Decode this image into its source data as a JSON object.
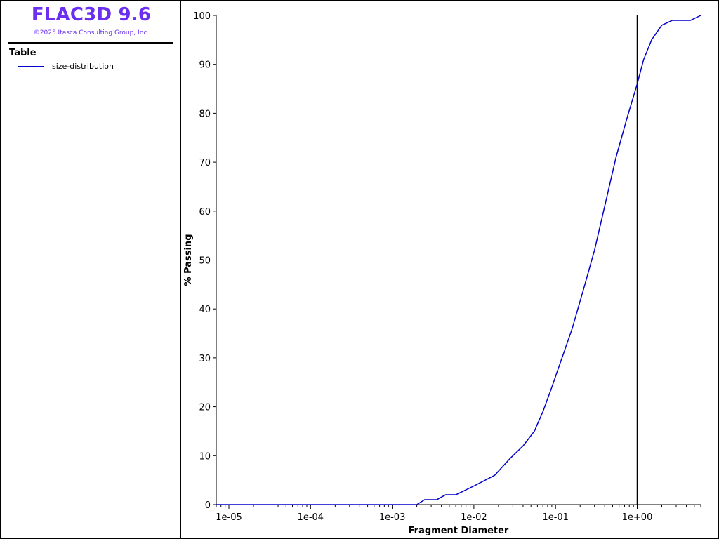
{
  "app": {
    "title": "FLAC3D 9.6",
    "copyright": "©2025 Itasca Consulting Group, Inc.",
    "brand_color": "#6a2ff0"
  },
  "legend": {
    "heading": "Table",
    "entries": [
      {
        "label": "size-distribution",
        "color": "#0000c8"
      }
    ]
  },
  "chart_data": {
    "type": "line",
    "xscale": "log",
    "xlim": [
      7e-06,
      6
    ],
    "ylim": [
      0,
      100
    ],
    "xlabel": "Fragment Diameter",
    "ylabel": "% Passing",
    "x_ticks": [
      {
        "value": 1e-05,
        "label": "1e-05"
      },
      {
        "value": 0.0001,
        "label": "1e-04"
      },
      {
        "value": 0.001,
        "label": "1e-03"
      },
      {
        "value": 0.01,
        "label": "1e-02"
      },
      {
        "value": 0.1,
        "label": "1e-01"
      },
      {
        "value": 1,
        "label": "1e+00"
      }
    ],
    "y_ticks": [
      0,
      10,
      20,
      30,
      40,
      50,
      60,
      70,
      80,
      90,
      100
    ],
    "grid": false,
    "vertical_marker": 1,
    "series": [
      {
        "name": "size-distribution",
        "color": "#0000c8",
        "x": [
          7e-06,
          0.001,
          0.002,
          0.0025,
          0.0035,
          0.0045,
          0.006,
          0.01,
          0.018,
          0.028,
          0.04,
          0.055,
          0.07,
          0.09,
          0.12,
          0.16,
          0.22,
          0.3,
          0.4,
          0.55,
          0.75,
          1,
          1.2,
          1.5,
          2,
          2.7,
          3.5,
          4.5,
          6
        ],
        "y": [
          0,
          0,
          0,
          1,
          1,
          2,
          2,
          3.8,
          6,
          9.5,
          12,
          15,
          19,
          24,
          30,
          36,
          44,
          52,
          61,
          71,
          79,
          86,
          91,
          95,
          98,
          99,
          99,
          99,
          100
        ]
      }
    ]
  }
}
